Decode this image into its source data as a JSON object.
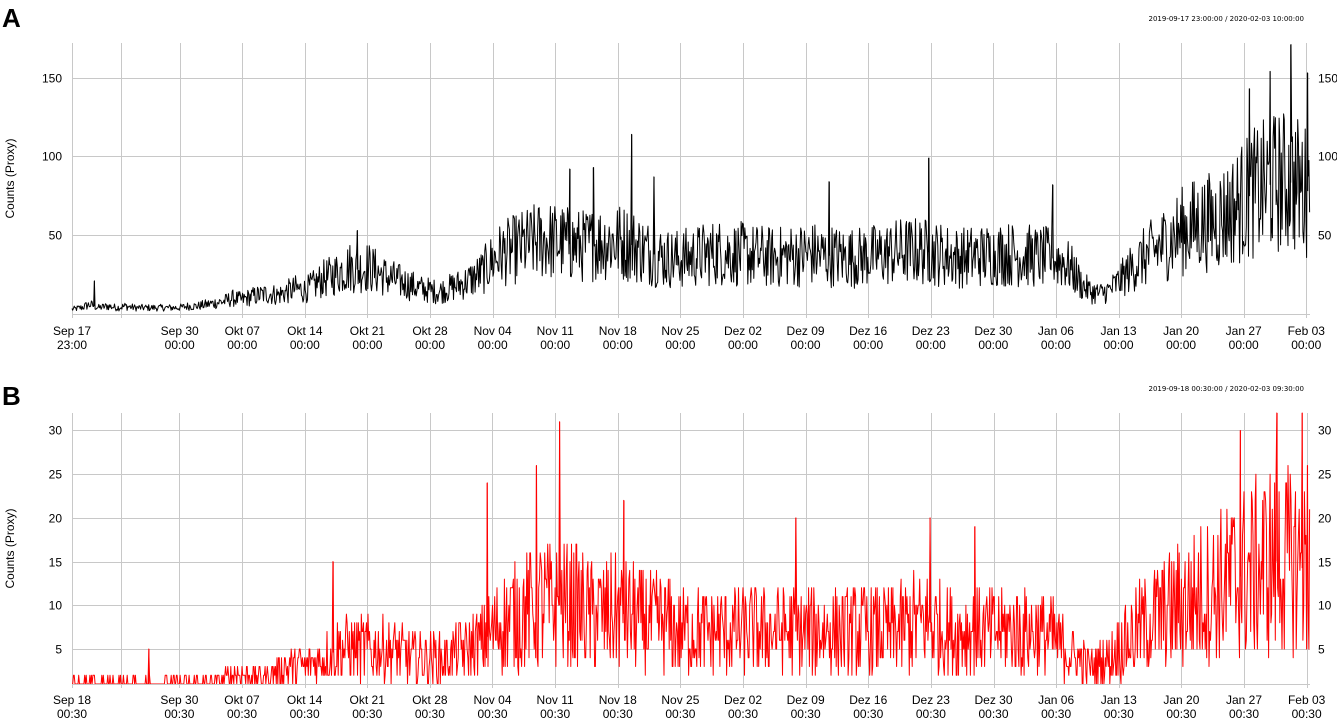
{
  "chart_data": [
    {
      "panel": "A",
      "type": "line",
      "range_label": "2019-09-17 23:00:00 / 2020-02-03 10:00:00",
      "ylabel": "Counts (Proxy)",
      "ylim": [
        0,
        172
      ],
      "yticks": [
        50,
        100,
        150
      ],
      "grid": true,
      "color": "#000000",
      "xticks": [
        {
          "t": 0,
          "date": "Sep 17",
          "time": "23:00"
        },
        {
          "t": 12.042,
          "date": "Sep 30",
          "time": "00:00"
        },
        {
          "t": 19.042,
          "date": "Okt 07",
          "time": "00:00"
        },
        {
          "t": 26.042,
          "date": "Okt 14",
          "time": "00:00"
        },
        {
          "t": 33.042,
          "date": "Okt 21",
          "time": "00:00"
        },
        {
          "t": 40.042,
          "date": "Okt 28",
          "time": "00:00"
        },
        {
          "t": 47.042,
          "date": "Nov 04",
          "time": "00:00"
        },
        {
          "t": 54.042,
          "date": "Nov 11",
          "time": "00:00"
        },
        {
          "t": 61.042,
          "date": "Nov 18",
          "time": "00:00"
        },
        {
          "t": 68.042,
          "date": "Nov 25",
          "time": "00:00"
        },
        {
          "t": 75.042,
          "date": "Dez 02",
          "time": "00:00"
        },
        {
          "t": 82.042,
          "date": "Dez 09",
          "time": "00:00"
        },
        {
          "t": 89.042,
          "date": "Dez 16",
          "time": "00:00"
        },
        {
          "t": 96.042,
          "date": "Dez 23",
          "time": "00:00"
        },
        {
          "t": 103.042,
          "date": "Dez 30",
          "time": "00:00"
        },
        {
          "t": 110.042,
          "date": "Jan 06",
          "time": "00:00"
        },
        {
          "t": 117.042,
          "date": "Jan 13",
          "time": "00:00"
        },
        {
          "t": 124.042,
          "date": "Jan 20",
          "time": "00:00"
        },
        {
          "t": 131.042,
          "date": "Jan 27",
          "time": "00:00"
        },
        {
          "t": 138.042,
          "date": "Feb 03",
          "time": "00:00"
        }
      ],
      "xlim": [
        0,
        138.458
      ],
      "series": [
        {
          "t": 0,
          "v": 3
        },
        {
          "t": 1,
          "v": 4
        },
        {
          "t": 2,
          "v": 6
        },
        {
          "t": 3,
          "v": 4
        },
        {
          "t": 4,
          "v": 5
        },
        {
          "t": 5,
          "v": 4
        },
        {
          "t": 6,
          "v": 5
        },
        {
          "t": 7,
          "v": 4
        },
        {
          "t": 8,
          "v": 4
        },
        {
          "t": 9,
          "v": 4
        },
        {
          "t": 10,
          "v": 4
        },
        {
          "t": 11,
          "v": 4
        },
        {
          "t": 12,
          "v": 4
        },
        {
          "t": 13,
          "v": 5
        },
        {
          "t": 14,
          "v": 5
        },
        {
          "t": 15,
          "v": 6
        },
        {
          "t": 16,
          "v": 7
        },
        {
          "t": 17,
          "v": 8
        },
        {
          "t": 18,
          "v": 10
        },
        {
          "t": 19,
          "v": 9
        },
        {
          "t": 20,
          "v": 11
        },
        {
          "t": 21,
          "v": 12
        },
        {
          "t": 22,
          "v": 13
        },
        {
          "t": 23,
          "v": 12
        },
        {
          "t": 24,
          "v": 14
        },
        {
          "t": 25,
          "v": 16
        },
        {
          "t": 26,
          "v": 15
        },
        {
          "t": 27,
          "v": 18
        },
        {
          "t": 28,
          "v": 22
        },
        {
          "t": 29,
          "v": 24
        },
        {
          "t": 30,
          "v": 27
        },
        {
          "t": 31,
          "v": 30
        },
        {
          "t": 32,
          "v": 28
        },
        {
          "t": 33,
          "v": 30
        },
        {
          "t": 34,
          "v": 27
        },
        {
          "t": 35,
          "v": 24
        },
        {
          "t": 36,
          "v": 22
        },
        {
          "t": 37,
          "v": 20
        },
        {
          "t": 38,
          "v": 18
        },
        {
          "t": 39,
          "v": 16
        },
        {
          "t": 40,
          "v": 15
        },
        {
          "t": 41,
          "v": 14
        },
        {
          "t": 42,
          "v": 16
        },
        {
          "t": 43,
          "v": 18
        },
        {
          "t": 44,
          "v": 20
        },
        {
          "t": 45,
          "v": 23
        },
        {
          "t": 46,
          "v": 27
        },
        {
          "t": 47,
          "v": 34
        },
        {
          "t": 48,
          "v": 38
        },
        {
          "t": 49,
          "v": 40
        },
        {
          "t": 50,
          "v": 42
        },
        {
          "t": 51,
          "v": 44
        },
        {
          "t": 52,
          "v": 46
        },
        {
          "t": 53,
          "v": 47
        },
        {
          "t": 54,
          "v": 46
        },
        {
          "t": 55,
          "v": 45
        },
        {
          "t": 56,
          "v": 44
        },
        {
          "t": 57,
          "v": 43
        },
        {
          "t": 58,
          "v": 44
        },
        {
          "t": 59,
          "v": 45
        },
        {
          "t": 60,
          "v": 46
        },
        {
          "t": 61,
          "v": 46
        },
        {
          "t": 62,
          "v": 45
        },
        {
          "t": 63,
          "v": 43
        },
        {
          "t": 64,
          "v": 40
        },
        {
          "t": 65,
          "v": 38
        },
        {
          "t": 66,
          "v": 36
        },
        {
          "t": 67,
          "v": 35
        },
        {
          "t": 68,
          "v": 35
        },
        {
          "t": 69,
          "v": 36
        },
        {
          "t": 70,
          "v": 37
        },
        {
          "t": 71,
          "v": 38
        },
        {
          "t": 72,
          "v": 39
        },
        {
          "t": 73,
          "v": 39
        },
        {
          "t": 74,
          "v": 38
        },
        {
          "t": 75,
          "v": 38
        },
        {
          "t": 76,
          "v": 37
        },
        {
          "t": 77,
          "v": 37
        },
        {
          "t": 78,
          "v": 36
        },
        {
          "t": 79,
          "v": 36
        },
        {
          "t": 80,
          "v": 37
        },
        {
          "t": 81,
          "v": 37
        },
        {
          "t": 82,
          "v": 38
        },
        {
          "t": 83,
          "v": 38
        },
        {
          "t": 84,
          "v": 37
        },
        {
          "t": 85,
          "v": 37
        },
        {
          "t": 86,
          "v": 36
        },
        {
          "t": 87,
          "v": 36
        },
        {
          "t": 88,
          "v": 36
        },
        {
          "t": 89,
          "v": 37
        },
        {
          "t": 90,
          "v": 37
        },
        {
          "t": 91,
          "v": 38
        },
        {
          "t": 92,
          "v": 39
        },
        {
          "t": 93,
          "v": 40
        },
        {
          "t": 94,
          "v": 40
        },
        {
          "t": 95,
          "v": 40
        },
        {
          "t": 96,
          "v": 39
        },
        {
          "t": 97,
          "v": 38
        },
        {
          "t": 98,
          "v": 37
        },
        {
          "t": 99,
          "v": 36
        },
        {
          "t": 100,
          "v": 36
        },
        {
          "t": 101,
          "v": 37
        },
        {
          "t": 102,
          "v": 37
        },
        {
          "t": 103,
          "v": 38
        },
        {
          "t": 104,
          "v": 38
        },
        {
          "t": 105,
          "v": 38
        },
        {
          "t": 106,
          "v": 37
        },
        {
          "t": 107,
          "v": 37
        },
        {
          "t": 108,
          "v": 36
        },
        {
          "t": 109,
          "v": 36
        },
        {
          "t": 110,
          "v": 35
        },
        {
          "t": 111,
          "v": 33
        },
        {
          "t": 112,
          "v": 27
        },
        {
          "t": 113,
          "v": 18
        },
        {
          "t": 114,
          "v": 14
        },
        {
          "t": 115,
          "v": 13
        },
        {
          "t": 116,
          "v": 15
        },
        {
          "t": 117,
          "v": 20
        },
        {
          "t": 118,
          "v": 26
        },
        {
          "t": 119,
          "v": 32
        },
        {
          "t": 120,
          "v": 36
        },
        {
          "t": 121,
          "v": 40
        },
        {
          "t": 122,
          "v": 44
        },
        {
          "t": 123,
          "v": 48
        },
        {
          "t": 124,
          "v": 52
        },
        {
          "t": 125,
          "v": 55
        },
        {
          "t": 126,
          "v": 57
        },
        {
          "t": 127,
          "v": 58
        },
        {
          "t": 128,
          "v": 60
        },
        {
          "t": 129,
          "v": 63
        },
        {
          "t": 130,
          "v": 67
        },
        {
          "t": 131,
          "v": 72
        },
        {
          "t": 132,
          "v": 76
        },
        {
          "t": 133,
          "v": 79
        },
        {
          "t": 134,
          "v": 82
        },
        {
          "t": 135,
          "v": 84
        },
        {
          "t": 136,
          "v": 84
        },
        {
          "t": 137,
          "v": 82
        },
        {
          "t": 138,
          "v": 78
        }
      ],
      "peaks": [
        {
          "t": 2.5,
          "v": 21
        },
        {
          "t": 31.9,
          "v": 53
        },
        {
          "t": 55.7,
          "v": 92
        },
        {
          "t": 58.3,
          "v": 93
        },
        {
          "t": 62.6,
          "v": 114
        },
        {
          "t": 65.1,
          "v": 87
        },
        {
          "t": 84.7,
          "v": 84
        },
        {
          "t": 95.8,
          "v": 99
        },
        {
          "t": 109.7,
          "v": 82
        },
        {
          "t": 131.7,
          "v": 143
        },
        {
          "t": 134.0,
          "v": 154
        },
        {
          "t": 136.3,
          "v": 171
        },
        {
          "t": 138.2,
          "v": 153
        }
      ]
    },
    {
      "panel": "B",
      "type": "line",
      "range_label": "2019-09-18 00:30:00 / 2020-02-03 09:30:00",
      "ylabel": "Counts (Proxy)",
      "ylim": [
        1,
        32
      ],
      "yticks": [
        5,
        10,
        15,
        20,
        25,
        30
      ],
      "grid": true,
      "color": "#ff0000",
      "xticks": [
        {
          "t": 0,
          "date": "Sep 18",
          "time": "00:30"
        },
        {
          "t": 12,
          "date": "Sep 30",
          "time": "00:30"
        },
        {
          "t": 19,
          "date": "Okt 07",
          "time": "00:30"
        },
        {
          "t": 26,
          "date": "Okt 14",
          "time": "00:30"
        },
        {
          "t": 33,
          "date": "Okt 21",
          "time": "00:30"
        },
        {
          "t": 40,
          "date": "Okt 28",
          "time": "00:30"
        },
        {
          "t": 47,
          "date": "Nov 04",
          "time": "00:30"
        },
        {
          "t": 54,
          "date": "Nov 11",
          "time": "00:30"
        },
        {
          "t": 61,
          "date": "Nov 18",
          "time": "00:30"
        },
        {
          "t": 68,
          "date": "Nov 25",
          "time": "00:30"
        },
        {
          "t": 75,
          "date": "Dez 02",
          "time": "00:30"
        },
        {
          "t": 82,
          "date": "Dez 09",
          "time": "00:30"
        },
        {
          "t": 89,
          "date": "Dez 16",
          "time": "00:30"
        },
        {
          "t": 96,
          "date": "Dez 23",
          "time": "00:30"
        },
        {
          "t": 103,
          "date": "Dez 30",
          "time": "00:30"
        },
        {
          "t": 110,
          "date": "Jan 06",
          "time": "00:30"
        },
        {
          "t": 117,
          "date": "Jan 13",
          "time": "00:30"
        },
        {
          "t": 124,
          "date": "Jan 20",
          "time": "00:30"
        },
        {
          "t": 131,
          "date": "Jan 27",
          "time": "00:30"
        },
        {
          "t": 138,
          "date": "Feb 03",
          "time": "00:30"
        }
      ],
      "xlim": [
        0,
        138.375
      ],
      "series": [
        {
          "t": 0,
          "v": 1
        },
        {
          "t": 2,
          "v": 1
        },
        {
          "t": 4,
          "v": 1
        },
        {
          "t": 6,
          "v": 1
        },
        {
          "t": 8,
          "v": 1
        },
        {
          "t": 10,
          "v": 1
        },
        {
          "t": 12,
          "v": 1
        },
        {
          "t": 14,
          "v": 1
        },
        {
          "t": 16,
          "v": 1
        },
        {
          "t": 18,
          "v": 2
        },
        {
          "t": 20,
          "v": 2
        },
        {
          "t": 22,
          "v": 2
        },
        {
          "t": 24,
          "v": 3
        },
        {
          "t": 26,
          "v": 3
        },
        {
          "t": 28,
          "v": 4
        },
        {
          "t": 30,
          "v": 5
        },
        {
          "t": 32,
          "v": 5
        },
        {
          "t": 34,
          "v": 5
        },
        {
          "t": 36,
          "v": 5
        },
        {
          "t": 38,
          "v": 4
        },
        {
          "t": 40,
          "v": 4
        },
        {
          "t": 42,
          "v": 4
        },
        {
          "t": 44,
          "v": 5
        },
        {
          "t": 46,
          "v": 6
        },
        {
          "t": 48,
          "v": 8
        },
        {
          "t": 50,
          "v": 9
        },
        {
          "t": 52,
          "v": 10
        },
        {
          "t": 54,
          "v": 10
        },
        {
          "t": 56,
          "v": 10
        },
        {
          "t": 58,
          "v": 9
        },
        {
          "t": 60,
          "v": 9
        },
        {
          "t": 62,
          "v": 9
        },
        {
          "t": 64,
          "v": 8
        },
        {
          "t": 66,
          "v": 8
        },
        {
          "t": 68,
          "v": 7
        },
        {
          "t": 70,
          "v": 7
        },
        {
          "t": 72,
          "v": 7
        },
        {
          "t": 74,
          "v": 7
        },
        {
          "t": 76,
          "v": 7
        },
        {
          "t": 78,
          "v": 7
        },
        {
          "t": 80,
          "v": 7
        },
        {
          "t": 82,
          "v": 7
        },
        {
          "t": 84,
          "v": 7
        },
        {
          "t": 86,
          "v": 7
        },
        {
          "t": 88,
          "v": 7
        },
        {
          "t": 90,
          "v": 7
        },
        {
          "t": 92,
          "v": 7
        },
        {
          "t": 94,
          "v": 8
        },
        {
          "t": 96,
          "v": 8
        },
        {
          "t": 98,
          "v": 7
        },
        {
          "t": 100,
          "v": 7
        },
        {
          "t": 102,
          "v": 7
        },
        {
          "t": 104,
          "v": 7
        },
        {
          "t": 106,
          "v": 7
        },
        {
          "t": 108,
          "v": 7
        },
        {
          "t": 110,
          "v": 6
        },
        {
          "t": 112,
          "v": 4
        },
        {
          "t": 114,
          "v": 3
        },
        {
          "t": 116,
          "v": 4
        },
        {
          "t": 118,
          "v": 6
        },
        {
          "t": 120,
          "v": 8
        },
        {
          "t": 122,
          "v": 9
        },
        {
          "t": 124,
          "v": 10
        },
        {
          "t": 126,
          "v": 11
        },
        {
          "t": 128,
          "v": 12
        },
        {
          "t": 130,
          "v": 13
        },
        {
          "t": 132,
          "v": 14
        },
        {
          "t": 134,
          "v": 15
        },
        {
          "t": 136,
          "v": 15
        },
        {
          "t": 138,
          "v": 14
        }
      ],
      "peaks": [
        {
          "t": 8.6,
          "v": 5
        },
        {
          "t": 29.2,
          "v": 15
        },
        {
          "t": 46.4,
          "v": 24
        },
        {
          "t": 51.9,
          "v": 26
        },
        {
          "t": 54.5,
          "v": 31
        },
        {
          "t": 61.7,
          "v": 22
        },
        {
          "t": 80.9,
          "v": 20
        },
        {
          "t": 95.9,
          "v": 20
        },
        {
          "t": 100.9,
          "v": 19
        },
        {
          "t": 130.6,
          "v": 30
        },
        {
          "t": 134.7,
          "v": 32
        },
        {
          "t": 137.5,
          "v": 32
        },
        {
          "t": 138.1,
          "v": 26
        }
      ]
    }
  ]
}
